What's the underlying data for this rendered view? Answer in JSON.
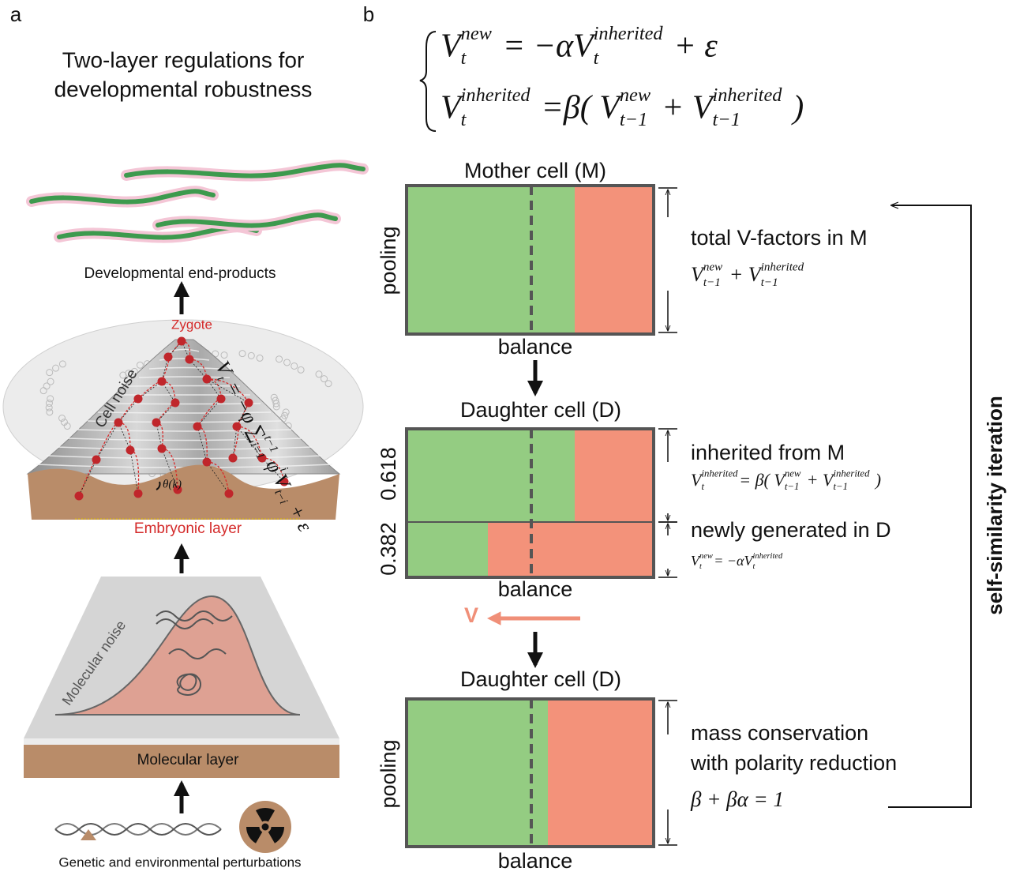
{
  "panel_a": {
    "label": "a",
    "title_lines": [
      "Two-layer regulations for",
      "developmental robustness"
    ],
    "end_products": "Developmental end-products",
    "zygote": "Zygote",
    "cell_noise": "Cell noise",
    "cell_equation": [
      {
        "text": "V",
        "sub": "t"
      },
      {
        "text": " = −φ ∑",
        "sub": "i=1",
        "sup": "t−1"
      },
      {
        "text": " φ",
        "sup": "i"
      },
      {
        "text": "V",
        "sub": "t−i"
      },
      {
        "text": " + ε"
      }
    ],
    "angle_label": "θ(k)",
    "embryonic_layer": "Embryonic layer",
    "molecular_noise": "Molecular noise",
    "molecular_layer": "Molecular layer",
    "perturbations": "Genetic and environmental perturbations"
  },
  "panel_b": {
    "label": "b",
    "system": [
      [
        {
          "text": "V",
          "sub": "t",
          "sup": "new"
        },
        {
          "text": " = −αV",
          "sub": "t",
          "sup": "inherited"
        },
        {
          "text": " + ε"
        }
      ],
      [
        {
          "text": "V",
          "sub": "t",
          "sup": "inherited"
        },
        {
          "text": " =β( V",
          "sub": "t−1",
          "sup": "new"
        },
        {
          "text": " + V",
          "sub": "t−1",
          "sup": "inherited"
        },
        {
          "text": " )"
        }
      ]
    ],
    "mother": {
      "title": "Mother cell (M)",
      "y_label": "pooling",
      "x_label": "balance",
      "note": "total V-factors in M",
      "equation": [
        {
          "text": "V",
          "sub": "t−1",
          "sup": "new"
        },
        {
          "text": " + V",
          "sub": "t−1",
          "sup": "inherited"
        }
      ]
    },
    "daughter1": {
      "title": "Daughter cell (D)",
      "upper_label": "0.618",
      "lower_label": "0.382",
      "x_label": "balance",
      "upper_note": "inherited from M",
      "upper_equation": [
        {
          "text": "V",
          "sub": "t",
          "sup": "inherited"
        },
        {
          "text": "= β( V",
          "sub": "t−1",
          "sup": "new"
        },
        {
          "text": " + V",
          "sub": "t−1",
          "sup": "inherited"
        },
        {
          "text": " )"
        }
      ],
      "lower_note": "newly generated in D",
      "lower_equation": [
        {
          "text": "V",
          "sub": "t",
          "sup": "new"
        },
        {
          "text": "= −αV",
          "sub": "t",
          "sup": "inherited"
        }
      ]
    },
    "polarity_label": "V",
    "daughter2": {
      "title": "Daughter cell (D)",
      "y_label": "pooling",
      "x_label": "balance",
      "note_lines": [
        "mass conservation",
        "with polarity reduction"
      ],
      "conservation": "β + βα = 1"
    },
    "iteration": "self-similarity iteration"
  }
}
